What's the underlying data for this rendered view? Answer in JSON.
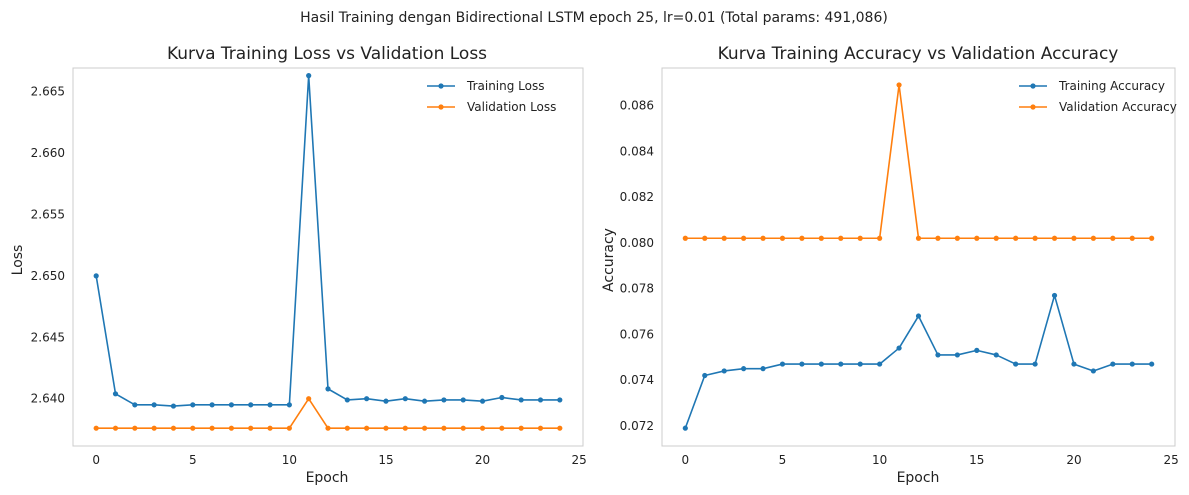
{
  "suptitle": "Hasil Training dengan Bidirectional LSTM epoch 25, lr=0.01 (Total params: 491,086)",
  "colors": {
    "training": "#1f77b4",
    "validation": "#ff7f0e",
    "frame": "#cccccc"
  },
  "chart_data": [
    {
      "type": "line",
      "title": "Kurva Training Loss vs Validation Loss",
      "xlabel": "Epoch",
      "ylabel": "Loss",
      "xlim": [
        -1.2,
        25.2
      ],
      "ylim": [
        2.63615,
        2.66692
      ],
      "xticks": [
        0,
        5,
        10,
        15,
        20,
        25
      ],
      "xtick_labels": [
        "0",
        "5",
        "10",
        "15",
        "20",
        "25"
      ],
      "yticks": [
        2.64,
        2.645,
        2.65,
        2.655,
        2.66,
        2.665
      ],
      "ytick_labels": [
        "2.640",
        "2.645",
        "2.650",
        "2.655",
        "2.660",
        "2.665"
      ],
      "grid": false,
      "legend_position": "top-right",
      "x": [
        0,
        1,
        2,
        3,
        4,
        5,
        6,
        7,
        8,
        9,
        10,
        11,
        12,
        13,
        14,
        15,
        16,
        17,
        18,
        19,
        20,
        21,
        22,
        23,
        24
      ],
      "series": [
        {
          "name": "Training Loss",
          "color": "#1f77b4",
          "values": [
            2.65,
            2.6404,
            2.6395,
            2.6395,
            2.6394,
            2.6395,
            2.6395,
            2.6395,
            2.6395,
            2.6395,
            2.6395,
            2.6663,
            2.6408,
            2.6399,
            2.64,
            2.6398,
            2.64,
            2.6398,
            2.6399,
            2.6399,
            2.6398,
            2.6401,
            2.6399,
            2.6399,
            2.6399
          ]
        },
        {
          "name": "Validation Loss",
          "color": "#ff7f0e",
          "values": [
            2.6376,
            2.6376,
            2.6376,
            2.6376,
            2.6376,
            2.6376,
            2.6376,
            2.6376,
            2.6376,
            2.6376,
            2.6376,
            2.64,
            2.6376,
            2.6376,
            2.6376,
            2.6376,
            2.6376,
            2.6376,
            2.6376,
            2.6376,
            2.6376,
            2.6376,
            2.6376,
            2.6376,
            2.6376
          ]
        }
      ]
    },
    {
      "type": "line",
      "title": "Kurva Training Accuracy vs Validation Accuracy",
      "xlabel": "Epoch",
      "ylabel": "Accuracy",
      "xlim": [
        -1.2,
        25.2
      ],
      "ylim": [
        0.07112,
        0.08764
      ],
      "xticks": [
        0,
        5,
        10,
        15,
        20,
        25
      ],
      "xtick_labels": [
        "0",
        "5",
        "10",
        "15",
        "20",
        "25"
      ],
      "yticks": [
        0.072,
        0.074,
        0.076,
        0.078,
        0.08,
        0.082,
        0.084,
        0.086
      ],
      "ytick_labels": [
        "0.072",
        "0.074",
        "0.076",
        "0.078",
        "0.080",
        "0.082",
        "0.084",
        "0.086"
      ],
      "grid": false,
      "legend_position": "top-right",
      "x": [
        0,
        1,
        2,
        3,
        4,
        5,
        6,
        7,
        8,
        9,
        10,
        11,
        12,
        13,
        14,
        15,
        16,
        17,
        18,
        19,
        20,
        21,
        22,
        23,
        24
      ],
      "series": [
        {
          "name": "Training Accuracy",
          "color": "#1f77b4",
          "values": [
            0.0719,
            0.0742,
            0.0744,
            0.0745,
            0.0745,
            0.0747,
            0.0747,
            0.0747,
            0.0747,
            0.0747,
            0.0747,
            0.0754,
            0.0768,
            0.0751,
            0.0751,
            0.0753,
            0.0751,
            0.0747,
            0.0747,
            0.0777,
            0.0747,
            0.0744,
            0.0747,
            0.0747,
            0.0747
          ]
        },
        {
          "name": "Validation Accuracy",
          "color": "#ff7f0e",
          "values": [
            0.0802,
            0.0802,
            0.0802,
            0.0802,
            0.0802,
            0.0802,
            0.0802,
            0.0802,
            0.0802,
            0.0802,
            0.0802,
            0.0869,
            0.0802,
            0.0802,
            0.0802,
            0.0802,
            0.0802,
            0.0802,
            0.0802,
            0.0802,
            0.0802,
            0.0802,
            0.0802,
            0.0802,
            0.0802
          ]
        }
      ]
    }
  ]
}
